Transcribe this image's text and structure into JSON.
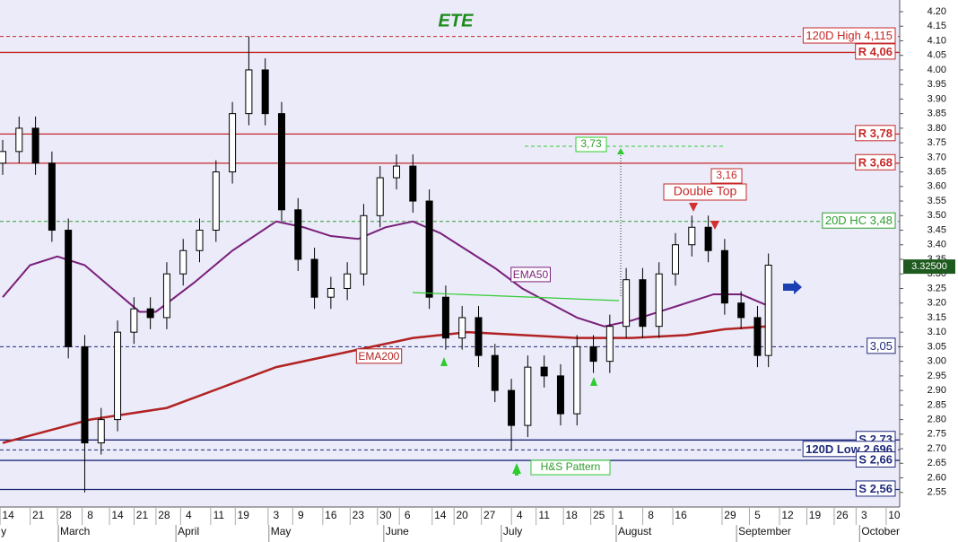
{
  "chart_data": {
    "type": "candlestick",
    "title": "ETE",
    "up_color": "#ffffff",
    "down_color": "#000000",
    "x": [
      0,
      3,
      6,
      9,
      12,
      15,
      18,
      21,
      24,
      27,
      30,
      33,
      36,
      39,
      42,
      45,
      48,
      51,
      54,
      57,
      60,
      63,
      66,
      69,
      72,
      75,
      78,
      81,
      84,
      87,
      90,
      93,
      96,
      99,
      102,
      105,
      108,
      111,
      114,
      117,
      120,
      123,
      126,
      129,
      132,
      135,
      138,
      140
    ],
    "open": [
      3.68,
      3.72,
      3.8,
      3.68,
      3.45,
      3.05,
      2.72,
      2.8,
      3.1,
      3.18,
      3.15,
      3.3,
      3.38,
      3.45,
      3.65,
      3.85,
      4.0,
      3.85,
      3.52,
      3.35,
      3.22,
      3.25,
      3.3,
      3.5,
      3.63,
      3.67,
      3.55,
      3.22,
      3.08,
      3.15,
      3.02,
      2.9,
      2.78,
      2.98,
      2.95,
      2.82,
      3.05,
      3.0,
      3.12,
      3.28,
      3.12,
      3.3,
      3.4,
      3.46,
      3.38,
      3.2,
      3.15,
      3.02
    ],
    "high": [
      3.76,
      3.84,
      3.84,
      3.72,
      3.49,
      3.09,
      2.84,
      3.14,
      3.22,
      3.22,
      3.34,
      3.42,
      3.49,
      3.69,
      3.89,
      4.115,
      4.04,
      3.89,
      3.56,
      3.39,
      3.29,
      3.34,
      3.54,
      3.67,
      3.71,
      3.71,
      3.59,
      3.26,
      3.19,
      3.19,
      3.06,
      2.94,
      3.02,
      3.02,
      2.99,
      3.09,
      3.09,
      3.16,
      3.32,
      3.32,
      3.34,
      3.44,
      3.5,
      3.5,
      3.42,
      3.24,
      3.19,
      3.37
    ],
    "low": [
      3.64,
      3.68,
      3.64,
      3.41,
      3.01,
      2.55,
      2.68,
      2.76,
      3.06,
      3.11,
      3.11,
      3.26,
      3.34,
      3.41,
      3.61,
      3.81,
      3.81,
      3.48,
      3.31,
      3.18,
      3.18,
      3.21,
      3.26,
      3.46,
      3.59,
      3.51,
      3.18,
      3.04,
      3.04,
      2.98,
      2.86,
      2.696,
      2.74,
      2.91,
      2.78,
      2.78,
      2.96,
      2.96,
      3.08,
      3.08,
      3.08,
      3.26,
      3.36,
      3.34,
      3.16,
      3.11,
      2.98,
      2.98
    ],
    "close": [
      3.72,
      3.8,
      3.68,
      3.45,
      3.05,
      2.72,
      2.8,
      3.1,
      3.18,
      3.15,
      3.3,
      3.38,
      3.45,
      3.65,
      3.85,
      4.0,
      3.85,
      3.52,
      3.35,
      3.22,
      3.25,
      3.3,
      3.5,
      3.63,
      3.67,
      3.55,
      3.22,
      3.08,
      3.15,
      3.02,
      2.9,
      2.78,
      2.98,
      2.95,
      2.82,
      3.05,
      3.0,
      3.12,
      3.28,
      3.12,
      3.3,
      3.4,
      3.46,
      3.38,
      3.2,
      3.15,
      3.02,
      3.33
    ],
    "series": [
      {
        "name": "EMA50",
        "color": "#7a1f7a",
        "x": [
          0,
          5,
          10,
          15,
          20,
          25,
          28,
          35,
          42,
          50,
          55,
          60,
          65,
          70,
          75,
          80,
          85,
          90,
          95,
          100,
          105,
          110,
          115,
          120,
          125,
          130,
          135,
          140
        ],
        "values": [
          3.22,
          3.33,
          3.36,
          3.33,
          3.25,
          3.17,
          3.17,
          3.27,
          3.38,
          3.48,
          3.46,
          3.43,
          3.42,
          3.46,
          3.48,
          3.44,
          3.38,
          3.32,
          3.25,
          3.2,
          3.15,
          3.12,
          3.14,
          3.17,
          3.2,
          3.23,
          3.23,
          3.19
        ]
      },
      {
        "name": "EMA200",
        "color": "#b22222",
        "x": [
          0,
          16,
          30,
          40,
          50,
          60,
          65,
          75,
          85,
          95,
          105,
          115,
          125,
          132,
          140
        ],
        "values": [
          2.72,
          2.8,
          2.84,
          2.91,
          2.98,
          3.02,
          3.04,
          3.08,
          3.1,
          3.09,
          3.08,
          3.08,
          3.09,
          3.11,
          3.12
        ]
      }
    ],
    "hlines": [
      {
        "value": 4.115,
        "label": "120D High 4,115",
        "color": "#c62828",
        "style": "dashed"
      },
      {
        "value": 4.06,
        "label": "R 4,06",
        "color": "#c62828",
        "style": "solid"
      },
      {
        "value": 3.78,
        "label": "R 3,78",
        "color": "#c62828",
        "style": "solid"
      },
      {
        "value": 3.68,
        "label": "R 3,68",
        "color": "#c62828",
        "style": "solid"
      },
      {
        "value": 3.48,
        "label": "20D HC 3,48",
        "color": "#2e9e2e",
        "style": "dashed"
      },
      {
        "value": 3.05,
        "label": "3,05",
        "color": "#1f2a7a",
        "style": "dashed"
      },
      {
        "value": 2.73,
        "label": "S 2,73",
        "color": "#1f2a7a",
        "style": "solid"
      },
      {
        "value": 2.696,
        "label": "120D Low 2,696",
        "color": "#1f2a7a",
        "style": "dashed"
      },
      {
        "value": 2.66,
        "label": "S 2,66",
        "color": "#1f2a7a",
        "style": "solid"
      },
      {
        "value": 2.56,
        "label": "S 2,56",
        "color": "#1f2a7a",
        "style": "solid"
      }
    ],
    "last_price": {
      "value": 3.325,
      "label": "3.32500"
    },
    "annotations": [
      "3,73",
      "3,16",
      "Double Top",
      "H&S Pattern"
    ],
    "ylim": [
      2.5,
      4.24
    ],
    "xlim": [
      0,
      164
    ],
    "yticks": [
      2.55,
      {
        "value": 2.6,
        "label": "2.60"
      },
      2.65,
      {
        "value": 2.7,
        "label": "2.70"
      },
      2.75,
      {
        "value": 2.8,
        "label": "2.80"
      },
      2.85,
      {
        "value": 2.9,
        "label": "2.90"
      },
      2.95,
      {
        "value": 3.0,
        "label": "3.00"
      },
      3.05,
      {
        "value": 3.1,
        "label": "3.10"
      },
      3.15,
      {
        "value": 3.2,
        "label": "3.20"
      },
      3.25,
      {
        "value": 3.3,
        "label": "3.30"
      },
      3.35,
      {
        "value": 3.4,
        "label": "3.40"
      },
      3.45,
      {
        "value": 3.5,
        "label": "3.50"
      },
      3.55,
      {
        "value": 3.6,
        "label": "3.60"
      },
      3.65,
      {
        "value": 3.7,
        "label": "3.70"
      },
      3.75,
      {
        "value": 3.8,
        "label": "3.80"
      },
      3.85,
      {
        "value": 3.9,
        "label": "3.90"
      },
      3.95,
      {
        "value": 4.0,
        "label": "4.00"
      },
      4.05,
      {
        "value": 4.1,
        "label": "4.10"
      },
      4.15,
      {
        "value": 4.2,
        "label": "4.20"
      }
    ],
    "xticks": [
      {
        "value": 1,
        "label": "14"
      },
      {
        "value": 6.5,
        "label": "21"
      },
      {
        "value": 11.5,
        "label": "28"
      },
      {
        "value": 16,
        "label": "8"
      },
      {
        "value": 21,
        "label": "14"
      },
      {
        "value": 25.5,
        "label": "21"
      },
      {
        "value": 29.5,
        "label": "28"
      },
      {
        "value": 34,
        "label": "4"
      },
      {
        "value": 39.5,
        "label": "11"
      },
      {
        "value": 44,
        "label": "19"
      },
      {
        "value": 50,
        "label": "3"
      },
      {
        "value": 54.5,
        "label": "9"
      },
      {
        "value": 60,
        "label": "16"
      },
      {
        "value": 65,
        "label": "23"
      },
      {
        "value": 70,
        "label": "30"
      },
      {
        "value": 74,
        "label": "6"
      },
      {
        "value": 80,
        "label": "14"
      },
      {
        "value": 84,
        "label": "20"
      },
      {
        "value": 89,
        "label": "27"
      },
      {
        "value": 94.5,
        "label": "4"
      },
      {
        "value": 99,
        "label": "11"
      },
      {
        "value": 104,
        "label": "18"
      },
      {
        "value": 109,
        "label": "25"
      },
      {
        "value": 113,
        "label": "1"
      },
      {
        "value": 118.5,
        "label": "8"
      },
      {
        "value": 124,
        "label": "16"
      },
      {
        "value": 133,
        "label": "29"
      },
      {
        "value": 138,
        "label": "5"
      },
      {
        "value": 143.5,
        "label": "12"
      },
      {
        "value": 148.5,
        "label": "19"
      },
      {
        "value": 153.5,
        "label": "26"
      },
      {
        "value": 157.5,
        "label": "3"
      },
      {
        "value": 163,
        "label": "10"
      }
    ],
    "months": [
      {
        "value": -0.3,
        "label": "y"
      },
      {
        "value": 10.5,
        "label": "March"
      },
      {
        "value": 32,
        "label": "April"
      },
      {
        "value": 49,
        "label": "May"
      },
      {
        "value": 70,
        "label": "June"
      },
      {
        "value": 91.5,
        "label": "July"
      },
      {
        "value": 112.5,
        "label": "August"
      },
      {
        "value": 134.5,
        "label": "September"
      },
      {
        "value": 157,
        "label": "October"
      }
    ]
  }
}
